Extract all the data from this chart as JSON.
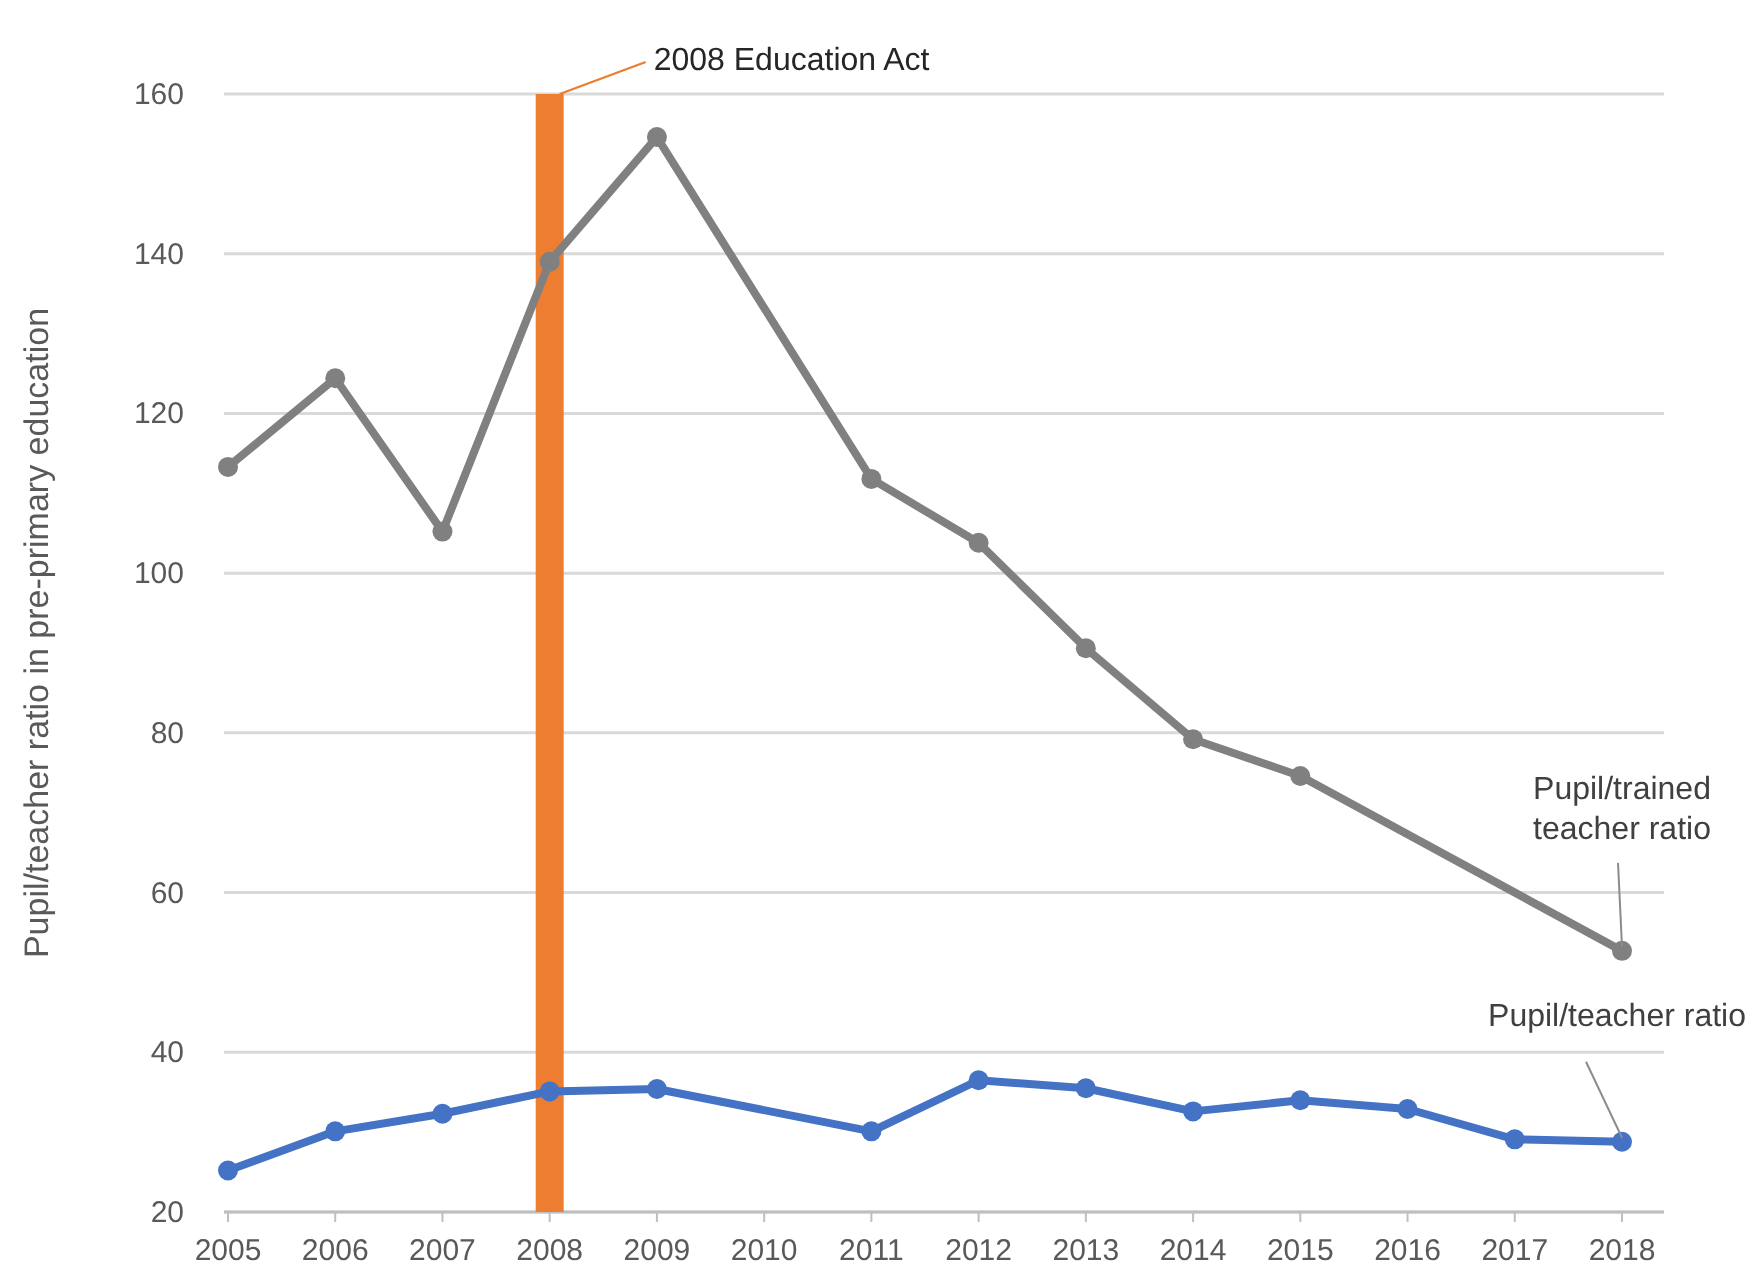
{
  "chart_data": {
    "type": "line",
    "ylabel": "Pupil/teacher ratio in pre-primary education",
    "categories": [
      "2005",
      "2006",
      "2007",
      "2008",
      "2009",
      "2010",
      "2011",
      "2012",
      "2013",
      "2014",
      "2015",
      "2016",
      "2017",
      "2018"
    ],
    "series": [
      {
        "name": "Pupil/trained teacher ratio",
        "color": "#808080",
        "values": [
          113.3,
          124.4,
          105.2,
          139,
          154.6,
          null,
          111.8,
          103.8,
          90.6,
          79.2,
          74.6,
          null,
          null,
          52.7
        ]
      },
      {
        "name": "Pupil/teacher ratio",
        "color": "#4472c4",
        "values": [
          25.2,
          30.1,
          32.3,
          35.1,
          35.4,
          null,
          30.1,
          36.5,
          35.5,
          32.6,
          34,
          32.9,
          29.1,
          28.8
        ]
      }
    ],
    "ylim": [
      20,
      160
    ],
    "yticks": [
      20,
      40,
      60,
      80,
      100,
      120,
      140,
      160
    ],
    "grid": "y",
    "marker": "circle",
    "ref_lines": [
      {
        "axis": "x",
        "value": "2008",
        "label": "2008 Education Act",
        "color": "#ed7d31"
      }
    ]
  }
}
